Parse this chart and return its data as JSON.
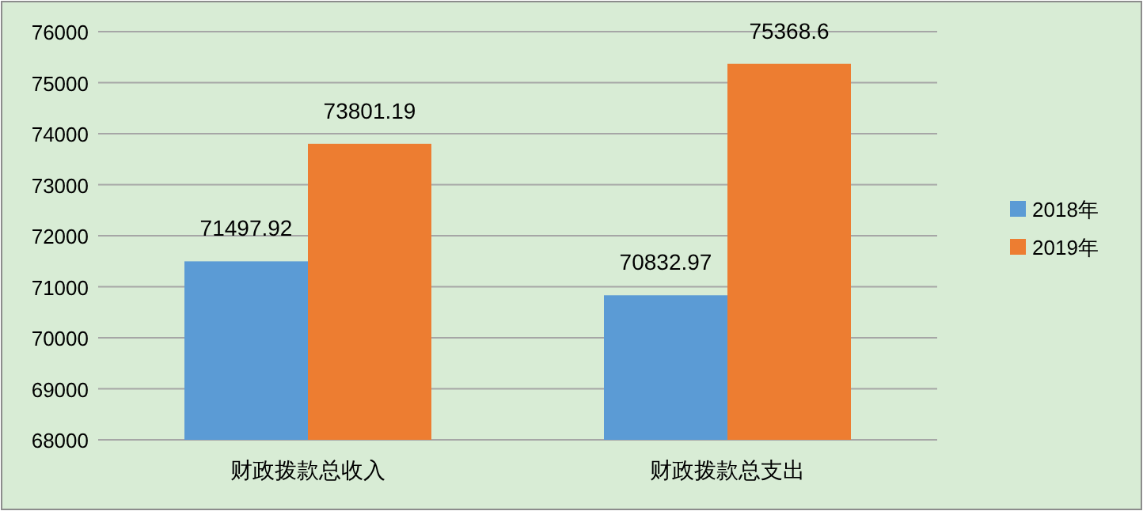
{
  "chart_data": {
    "type": "bar",
    "categories": [
      "财政拨款总收入",
      "财政拨款总支出"
    ],
    "series": [
      {
        "name": "2018年",
        "color": "#5b9bd5",
        "values": [
          71497.92,
          70832.97
        ]
      },
      {
        "name": "2019年",
        "color": "#ed7d31",
        "values": [
          73801.19,
          75368.6
        ]
      }
    ],
    "ylim": [
      68000,
      76000
    ],
    "yticks": [
      68000,
      69000,
      70000,
      71000,
      72000,
      73000,
      74000,
      75000,
      76000
    ],
    "grid": "y",
    "legend": "right",
    "data_labels": true
  }
}
